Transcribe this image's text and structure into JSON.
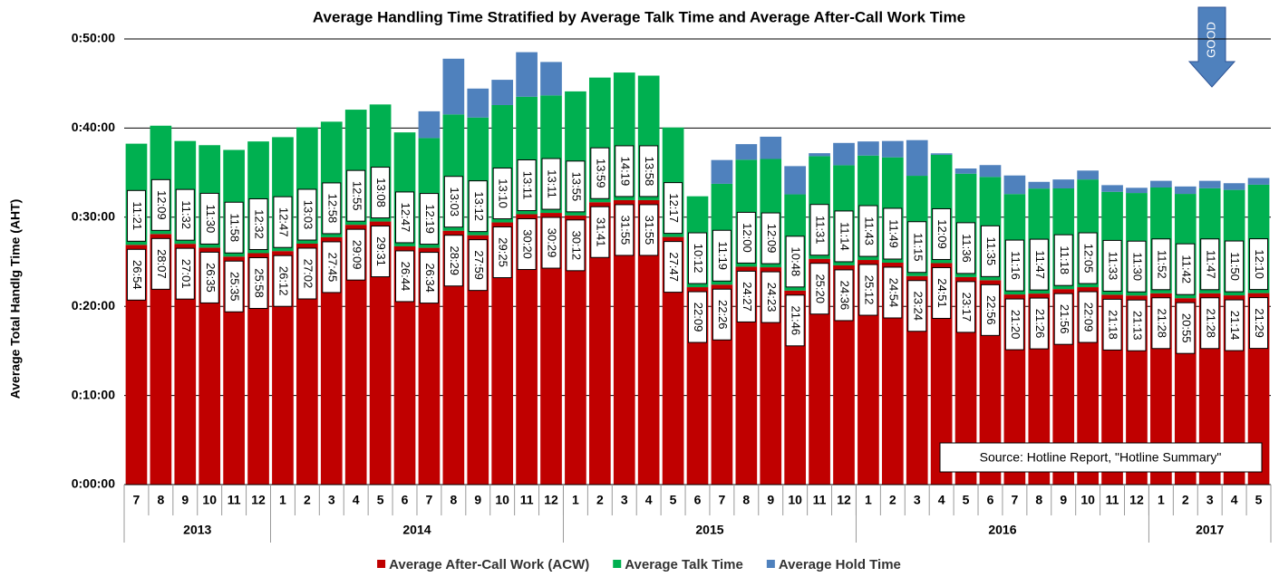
{
  "chart_data": {
    "type": "stacked_bar",
    "title": "Average Handling Time Stratified by Average Talk Time and Average After-Call Work Time",
    "y_label": "Average Total Handlg Time (AHT)",
    "annotations": {
      "source": "Source: Hotline Report, \"Hotline Summary\"",
      "arrow": "GOOD"
    },
    "groups": [
      {
        "label": "2013",
        "categories": [
          "7",
          "8",
          "9",
          "10",
          "11",
          "12"
        ]
      },
      {
        "label": "2014",
        "categories": [
          "1",
          "2",
          "3",
          "4",
          "5",
          "6",
          "7",
          "8",
          "9",
          "10",
          "11",
          "12"
        ]
      },
      {
        "label": "2015",
        "categories": [
          "1",
          "2",
          "3",
          "4",
          "5",
          "6",
          "7",
          "8",
          "9",
          "10",
          "11",
          "12"
        ]
      },
      {
        "label": "2016",
        "categories": [
          "1",
          "2",
          "3",
          "4",
          "5",
          "6",
          "7",
          "8",
          "9",
          "10",
          "11",
          "12"
        ]
      },
      {
        "label": "2017",
        "categories": [
          "1",
          "2",
          "3",
          "4",
          "5"
        ]
      }
    ],
    "ylim": [
      0,
      3000
    ],
    "yticks": [
      {
        "value": 0,
        "label": "0:00:00"
      },
      {
        "value": 600,
        "label": "0:10:00"
      },
      {
        "value": 1200,
        "label": "0:20:00"
      },
      {
        "value": 1800,
        "label": "0:30:00"
      },
      {
        "value": 2400,
        "label": "0:40:00"
      },
      {
        "value": 3000,
        "label": "0:50:00"
      }
    ],
    "grid": true,
    "legend": "bottom",
    "series": [
      {
        "name": "Average After-Call Work (ACW)",
        "color": "#c00000",
        "values": [
          1614,
          1687,
          1621,
          1595,
          1535,
          1558,
          1572,
          1622,
          1665,
          1749,
          1771,
          1604,
          1594,
          1709,
          1679,
          1765,
          1820,
          1829,
          1812,
          1901,
          1915,
          1915,
          1667,
          1329,
          1346,
          1467,
          1463,
          1306,
          1520,
          1476,
          1512,
          1494,
          1404,
          1491,
          1397,
          1376,
          1280,
          1286,
          1316,
          1329,
          1278,
          1273,
          1288,
          1255,
          1288,
          1274,
          1289
        ],
        "value_labels": [
          "26:54",
          "28:07",
          "27:01",
          "26:35",
          "25:35",
          "25:58",
          "26:12",
          "27:02",
          "27:45",
          "29:09",
          "29:31",
          "26:44",
          "26:34",
          "28:29",
          "27:59",
          "29:25",
          "30:20",
          "30:29",
          "30:12",
          "31:41",
          "31:55",
          "31:55",
          "27:47",
          "22:09",
          "22:26",
          "24:27",
          "24:23",
          "21:46",
          "25:20",
          "24:36",
          "25:12",
          "24:54",
          "23:24",
          "24:51",
          "23:17",
          "22:56",
          "21:20",
          "21:26",
          "21:56",
          "22:09",
          "21:18",
          "21:13",
          "21:28",
          "20:55",
          "21:28",
          "21:14",
          "21:29"
        ]
      },
      {
        "name": "Average Talk Time",
        "color": "#00b050",
        "values": [
          681,
          729,
          692,
          690,
          718,
          752,
          767,
          783,
          778,
          775,
          788,
          767,
          739,
          783,
          792,
          790,
          791,
          791,
          835,
          839,
          859,
          838,
          737,
          612,
          679,
          720,
          729,
          648,
          691,
          674,
          703,
          709,
          675,
          729,
          696,
          695,
          676,
          707,
          678,
          725,
          693,
          690,
          712,
          702,
          707,
          710,
          730
        ],
        "value_labels": [
          "11:21",
          "12:09",
          "11:32",
          "11:30",
          "11:58",
          "12:32",
          "12:47",
          "13:03",
          "12:58",
          "12:55",
          "13:08",
          "12:47",
          "12:19",
          "13:03",
          "13:12",
          "13:10",
          "13:11",
          "13:11",
          "13:55",
          "13:59",
          "14:19",
          "13:58",
          "12:17",
          "10:12",
          "11:19",
          "12:00",
          "12:09",
          "10:48",
          "11:31",
          "11:14",
          "11:43",
          "11:49",
          "11:15",
          "12:09",
          "11:36",
          "11:35",
          "11:16",
          "11:47",
          "11:18",
          "12:05",
          "11:33",
          "11:30",
          "11:52",
          "11:42",
          "11:47",
          "11:50",
          "12:10"
        ]
      },
      {
        "name": "Average Hold Time",
        "color": "#4f81bd",
        "values": [
          0,
          0,
          0,
          0,
          0,
          0,
          0,
          0,
          0,
          0,
          0,
          0,
          180,
          375,
          195,
          170,
          300,
          225,
          0,
          0,
          0,
          0,
          0,
          0,
          160,
          105,
          150,
          190,
          20,
          150,
          95,
          110,
          240,
          10,
          35,
          80,
          125,
          45,
          60,
          60,
          45,
          35,
          45,
          50,
          50,
          45,
          45
        ]
      }
    ]
  }
}
